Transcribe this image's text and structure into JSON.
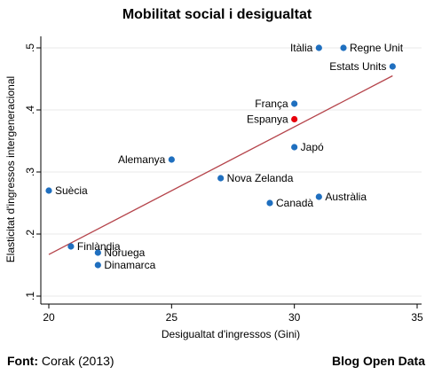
{
  "chart_data": {
    "type": "scatter",
    "title": "Mobilitat social i desigualtat",
    "xlabel": "Desigualtat d'ingressos (Gini)",
    "ylabel": "Elasticitat d'ingressos intergeneracional",
    "xlim": [
      20,
      35
    ],
    "ylim": [
      0.1,
      0.5
    ],
    "xticks": [
      "20",
      "25",
      "30",
      "35"
    ],
    "yticks": [
      ".1",
      ".2",
      ".3",
      ".4",
      ".5"
    ],
    "grid": true,
    "points": [
      {
        "label": "Itàlia",
        "x": 31,
        "y": 0.5,
        "color": "#1f6fbf",
        "label_side": "left"
      },
      {
        "label": "Regne Unit",
        "x": 32,
        "y": 0.5,
        "color": "#1f6fbf",
        "label_side": "right"
      },
      {
        "label": "Estats Units",
        "x": 34,
        "y": 0.47,
        "color": "#1f6fbf",
        "label_side": "left"
      },
      {
        "label": "França",
        "x": 30,
        "y": 0.41,
        "color": "#1f6fbf",
        "label_side": "left"
      },
      {
        "label": "Espanya",
        "x": 30,
        "y": 0.385,
        "color": "#e8000b",
        "label_side": "left"
      },
      {
        "label": "Japó",
        "x": 30,
        "y": 0.34,
        "color": "#1f6fbf",
        "label_side": "right"
      },
      {
        "label": "Alemanya",
        "x": 25,
        "y": 0.32,
        "color": "#1f6fbf",
        "label_side": "left"
      },
      {
        "label": "Nova Zelanda",
        "x": 27,
        "y": 0.29,
        "color": "#1f6fbf",
        "label_side": "right"
      },
      {
        "label": "Canadà",
        "x": 29,
        "y": 0.25,
        "color": "#1f6fbf",
        "label_side": "right"
      },
      {
        "label": "Austràlia",
        "x": 31,
        "y": 0.26,
        "color": "#1f6fbf",
        "label_side": "right"
      },
      {
        "label": "Suècia",
        "x": 20,
        "y": 0.27,
        "color": "#1f6fbf",
        "label_side": "right"
      },
      {
        "label": "Finlàndia",
        "x": 20.9,
        "y": 0.18,
        "color": "#1f6fbf",
        "label_side": "right"
      },
      {
        "label": "Noruega",
        "x": 22,
        "y": 0.17,
        "color": "#1f6fbf",
        "label_side": "right"
      },
      {
        "label": "Dinamarca",
        "x": 22,
        "y": 0.15,
        "color": "#1f6fbf",
        "label_side": "right"
      }
    ],
    "fit_line": {
      "x": [
        20,
        34
      ],
      "y": [
        0.167,
        0.455
      ],
      "color": "#b5444b"
    }
  },
  "footer": {
    "source_label": "Font:",
    "source_text": "Corak (2013)",
    "brand": "Blog Open Data"
  }
}
